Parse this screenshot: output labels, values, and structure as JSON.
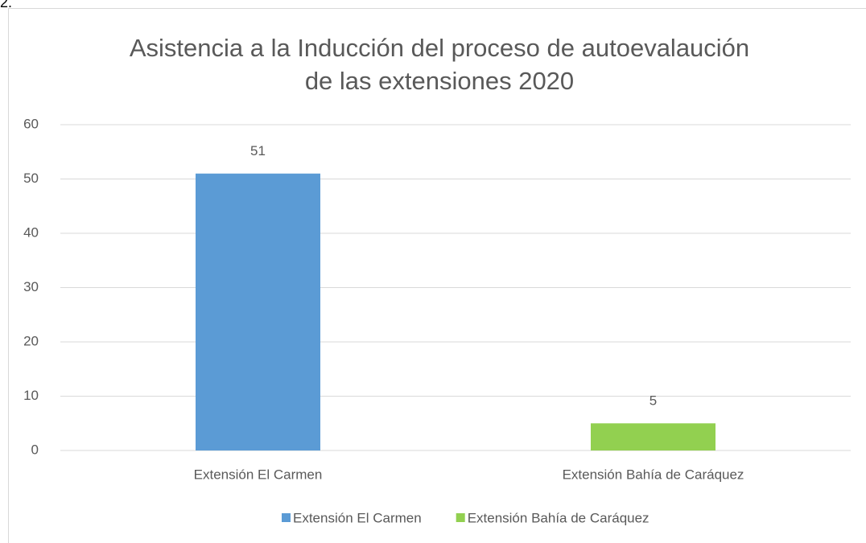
{
  "caption": "2.",
  "chart_data": {
    "type": "bar",
    "title": [
      "Asistencia a la Inducción del proceso de autoevalaución",
      "de las extensiones 2020"
    ],
    "categories": [
      "Extensión El Carmen",
      "Extensión Bahía de Caráquez"
    ],
    "series": [
      {
        "name": "Extensión El Carmen",
        "color": "#5b9bd5",
        "values": [
          51,
          null
        ]
      },
      {
        "name": "Extensión Bahía de Caráquez",
        "color": "#92d050",
        "values": [
          null,
          5
        ]
      }
    ],
    "ylim": [
      0,
      60
    ],
    "yticks": [
      0,
      10,
      20,
      30,
      40,
      50,
      60
    ],
    "grid": true,
    "legend": "bottom"
  }
}
